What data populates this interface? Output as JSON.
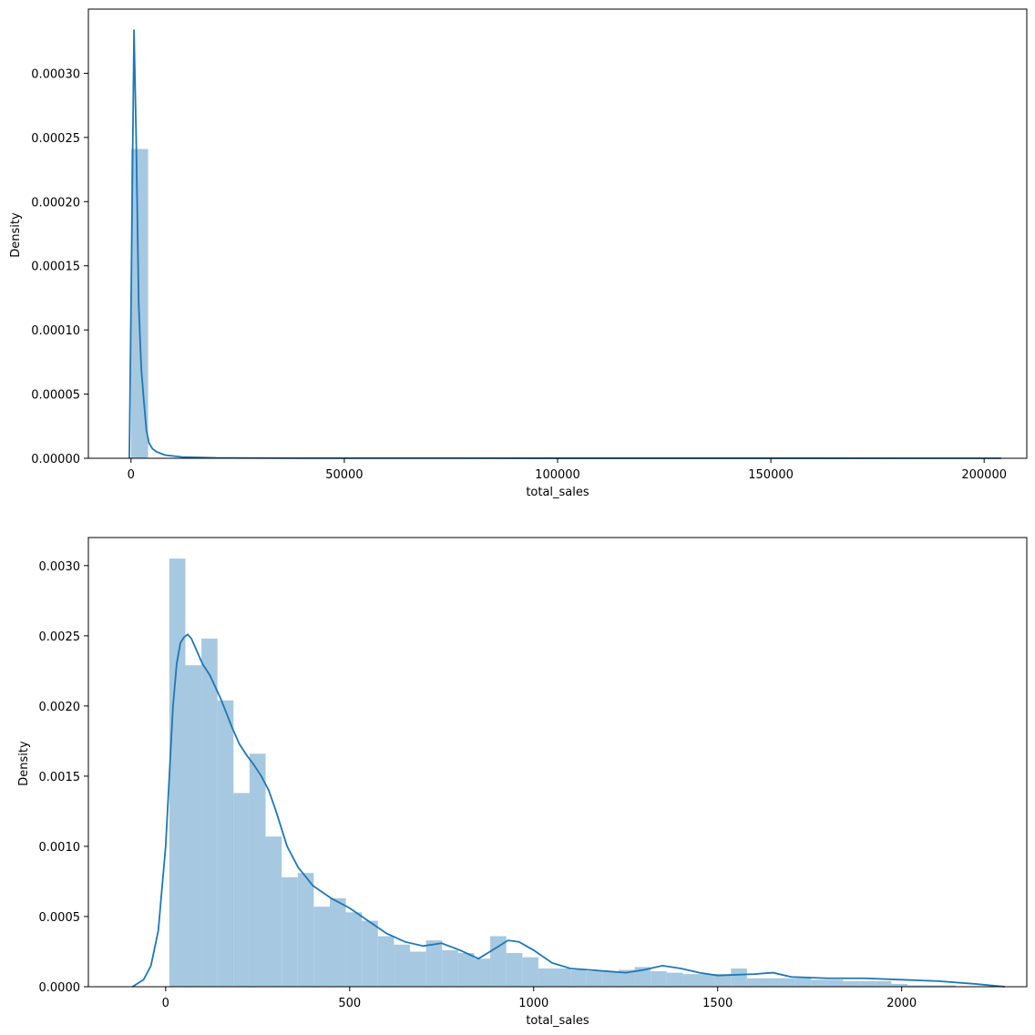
{
  "chart_data": [
    {
      "type": "histogram",
      "xlabel": "total_sales",
      "ylabel": "Density",
      "xlim": [
        -10000,
        210000
      ],
      "ylim": [
        0,
        0.00035
      ],
      "xticks": [
        0,
        50000,
        100000,
        150000,
        200000
      ],
      "yticks": [
        0.0,
        5e-05,
        0.0001,
        0.00015,
        0.0002,
        0.00025,
        0.0003
      ],
      "ytick_labels": [
        "0.00000",
        "0.00005",
        "0.00010",
        "0.00015",
        "0.00020",
        "0.00025",
        "0.00030"
      ],
      "bin_edges": [
        0,
        4000
      ],
      "bars": [
        0.000241
      ],
      "kde": {
        "x": [
          -400,
          200,
          700,
          1200,
          1800,
          2400,
          3000,
          3600,
          4200,
          5000,
          6000,
          8000,
          12000,
          20000,
          40000,
          100000,
          150000,
          204000
        ],
        "y": [
          0.0,
          0.00018,
          0.000334,
          0.00025,
          0.00012,
          7e-05,
          4.5e-05,
          2.2e-05,
          1.2e-05,
          7.5e-06,
          5e-06,
          2.5e-06,
          1e-06,
          3e-07,
          1e-07,
          5e-08,
          3e-08,
          2e-08
        ]
      },
      "grid": false,
      "colors": {
        "bar": "#a6c8e0",
        "line": "#1f77b4"
      }
    },
    {
      "type": "histogram",
      "xlabel": "total_sales",
      "ylabel": "Density",
      "xlim": [
        -210,
        2340
      ],
      "ylim": [
        0,
        0.0032
      ],
      "xticks": [
        0,
        500,
        1000,
        1500,
        2000
      ],
      "yticks": [
        0.0,
        0.0005,
        0.001,
        0.0015,
        0.002,
        0.0025,
        0.003
      ],
      "ytick_labels": [
        "0.0000",
        "0.0005",
        "0.0010",
        "0.0015",
        "0.0020",
        "0.0025",
        "0.0030"
      ],
      "bin_start": 10,
      "bin_width": 43.6,
      "bars": [
        0.00305,
        0.00229,
        0.00248,
        0.00204,
        0.00138,
        0.00166,
        0.00107,
        0.00078,
        0.00081,
        0.00057,
        0.00063,
        0.00053,
        0.00047,
        0.00036,
        0.0003,
        0.00025,
        0.00033,
        0.00026,
        0.00024,
        0.0002,
        0.00036,
        0.00024,
        0.00021,
        0.00013,
        0.00013,
        0.00012,
        0.00011,
        0.00011,
        0.00012,
        0.00014,
        0.00011,
        0.0001,
        9e-05,
        9e-05,
        9e-05,
        0.00013,
        6e-05,
        6e-05,
        6e-05,
        6e-05,
        5e-05,
        5e-05,
        4e-05,
        4e-05,
        4e-05,
        2e-05,
        1e-05,
        1e-05,
        1e-05
      ],
      "kde": {
        "x": [
          -90,
          -60,
          -40,
          -20,
          0,
          10,
          20,
          30,
          40,
          50,
          60,
          70,
          80,
          100,
          120,
          150,
          180,
          200,
          220,
          240,
          260,
          280,
          300,
          330,
          360,
          400,
          450,
          500,
          550,
          600,
          650,
          700,
          750,
          800,
          850,
          900,
          930,
          960,
          1000,
          1050,
          1100,
          1200,
          1250,
          1300,
          1350,
          1400,
          1450,
          1500,
          1600,
          1650,
          1700,
          1800,
          1900,
          2000,
          2100,
          2200,
          2280
        ],
        "y": [
          0.0,
          5e-05,
          0.00015,
          0.0004,
          0.001,
          0.0015,
          0.002,
          0.0023,
          0.00245,
          0.00249,
          0.00251,
          0.00248,
          0.00242,
          0.0023,
          0.00222,
          0.00205,
          0.00185,
          0.00173,
          0.00165,
          0.00158,
          0.0015,
          0.0014,
          0.00125,
          0.001,
          0.00085,
          0.00072,
          0.00063,
          0.00056,
          0.00047,
          0.00038,
          0.00032,
          0.00029,
          0.00031,
          0.00026,
          0.0002,
          0.00028,
          0.00033,
          0.00032,
          0.00026,
          0.00017,
          0.00013,
          0.00011,
          0.0001,
          0.00012,
          0.00015,
          0.00013,
          0.0001,
          8e-05,
          9e-05,
          0.0001,
          7e-05,
          6e-05,
          6e-05,
          5e-05,
          4e-05,
          2e-05,
          0.0
        ]
      },
      "grid": false,
      "colors": {
        "bar": "#a6c8e0",
        "line": "#1f77b4"
      }
    }
  ]
}
